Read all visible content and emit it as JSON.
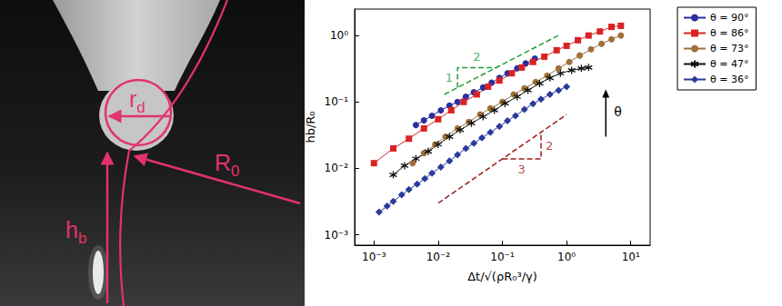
{
  "photo": {
    "labels": [
      "rd",
      "hb",
      "R0"
    ]
  },
  "chart_data": {
    "type": "line",
    "log": true,
    "grid": false,
    "legend": "right",
    "x_label": "Δt/√(ρR₀³/γ)",
    "y_label": "hb/R₀",
    "xlim": [
      0.0005,
      20
    ],
    "ylim": [
      0.0007,
      2.5
    ],
    "xticks": [
      {
        "value": 0.001,
        "label": "10⁻³"
      },
      {
        "value": 0.01,
        "label": "10⁻²"
      },
      {
        "value": 0.1,
        "label": "10⁻¹"
      },
      {
        "value": 1,
        "label": "10⁰"
      },
      {
        "value": 10,
        "label": "10¹"
      }
    ],
    "yticks": [
      {
        "value": 0.001,
        "label": "10⁻³"
      },
      {
        "value": 0.01,
        "label": "10⁻²"
      },
      {
        "value": 0.1,
        "label": "10⁻¹"
      },
      {
        "value": 1,
        "label": "10⁰"
      }
    ],
    "series": [
      {
        "name": "θ = 90°",
        "color": "#2b2f9e",
        "marker": "circle",
        "line_style": "solid",
        "x": [
          0.0045,
          0.006,
          0.008,
          0.011,
          0.015,
          0.02,
          0.027,
          0.036,
          0.05,
          0.068,
          0.09,
          0.12,
          0.17,
          0.23,
          0.32
        ],
        "values": [
          0.045,
          0.053,
          0.062,
          0.075,
          0.088,
          0.1,
          0.12,
          0.14,
          0.165,
          0.195,
          0.23,
          0.27,
          0.32,
          0.38,
          0.45
        ]
      },
      {
        "name": "θ = 86°",
        "color": "#d92323",
        "marker": "square",
        "line_style": "solid",
        "x": [
          0.001,
          0.002,
          0.0035,
          0.006,
          0.01,
          0.016,
          0.025,
          0.04,
          0.06,
          0.09,
          0.14,
          0.2,
          0.3,
          0.45,
          0.7,
          1,
          1.5,
          2.2,
          3.3,
          5,
          7
        ],
        "values": [
          0.012,
          0.02,
          0.028,
          0.04,
          0.055,
          0.075,
          0.1,
          0.13,
          0.17,
          0.21,
          0.27,
          0.33,
          0.4,
          0.48,
          0.6,
          0.7,
          0.85,
          1.0,
          1.15,
          1.35,
          1.4
        ]
      },
      {
        "name": "θ = 73°",
        "color": "#a0703a",
        "marker": "circle",
        "line_style": "solid",
        "x": [
          0.004,
          0.006,
          0.009,
          0.013,
          0.02,
          0.03,
          0.045,
          0.065,
          0.1,
          0.15,
          0.22,
          0.33,
          0.5,
          0.75,
          1.1,
          1.6,
          2.4,
          3.5,
          5,
          7
        ],
        "values": [
          0.012,
          0.017,
          0.023,
          0.03,
          0.04,
          0.05,
          0.065,
          0.08,
          0.1,
          0.13,
          0.16,
          0.2,
          0.25,
          0.32,
          0.4,
          0.5,
          0.62,
          0.75,
          0.88,
          1.0
        ]
      },
      {
        "name": "θ = 47°",
        "color": "#111111",
        "marker": "asterisk",
        "line_style": "solid",
        "x": [
          0.002,
          0.003,
          0.0045,
          0.007,
          0.01,
          0.015,
          0.022,
          0.033,
          0.05,
          0.075,
          0.11,
          0.17,
          0.25,
          0.38,
          0.55,
          0.8,
          1.2,
          1.7,
          2.2
        ],
        "values": [
          0.008,
          0.011,
          0.014,
          0.018,
          0.023,
          0.03,
          0.038,
          0.048,
          0.06,
          0.075,
          0.095,
          0.12,
          0.15,
          0.19,
          0.23,
          0.27,
          0.3,
          0.32,
          0.33
        ]
      },
      {
        "name": "θ = 36°",
        "color": "#2a3a9a",
        "marker": "diamond",
        "line_style": "solid",
        "x": [
          0.0012,
          0.0016,
          0.002,
          0.0027,
          0.0035,
          0.0047,
          0.0062,
          0.008,
          0.011,
          0.015,
          0.02,
          0.027,
          0.036,
          0.048,
          0.065,
          0.09,
          0.12,
          0.16,
          0.22,
          0.3,
          0.4,
          0.55,
          0.75,
          1
        ],
        "values": [
          0.0022,
          0.0027,
          0.0032,
          0.004,
          0.0048,
          0.0058,
          0.007,
          0.0085,
          0.0105,
          0.013,
          0.016,
          0.02,
          0.024,
          0.029,
          0.035,
          0.043,
          0.052,
          0.062,
          0.077,
          0.094,
          0.11,
          0.13,
          0.15,
          0.17
        ]
      }
    ],
    "guides": [
      {
        "color": "#1f9e3a",
        "line_style": "dashed",
        "x": [
          0.0125,
          0.8
        ],
        "values": [
          0.13,
          1.04
        ],
        "triangle": {
          "x": [
            0.02,
            0.02,
            0.08
          ],
          "values": [
            0.1644,
            0.329,
            0.329
          ]
        },
        "leg_labels": [
          "1",
          "2"
        ]
      },
      {
        "color": "#9b1b1b",
        "line_style": "dashed",
        "x": [
          0.01,
          1
        ],
        "values": [
          0.003,
          0.0646
        ],
        "triangle": {
          "x": [
            0.1,
            0.4,
            0.4
          ],
          "values": [
            0.0139,
            0.0139,
            0.0351
          ]
        },
        "leg_labels": [
          "3",
          "2"
        ]
      }
    ],
    "annotations": [
      {
        "text": "θ",
        "arrow": "up"
      }
    ]
  }
}
